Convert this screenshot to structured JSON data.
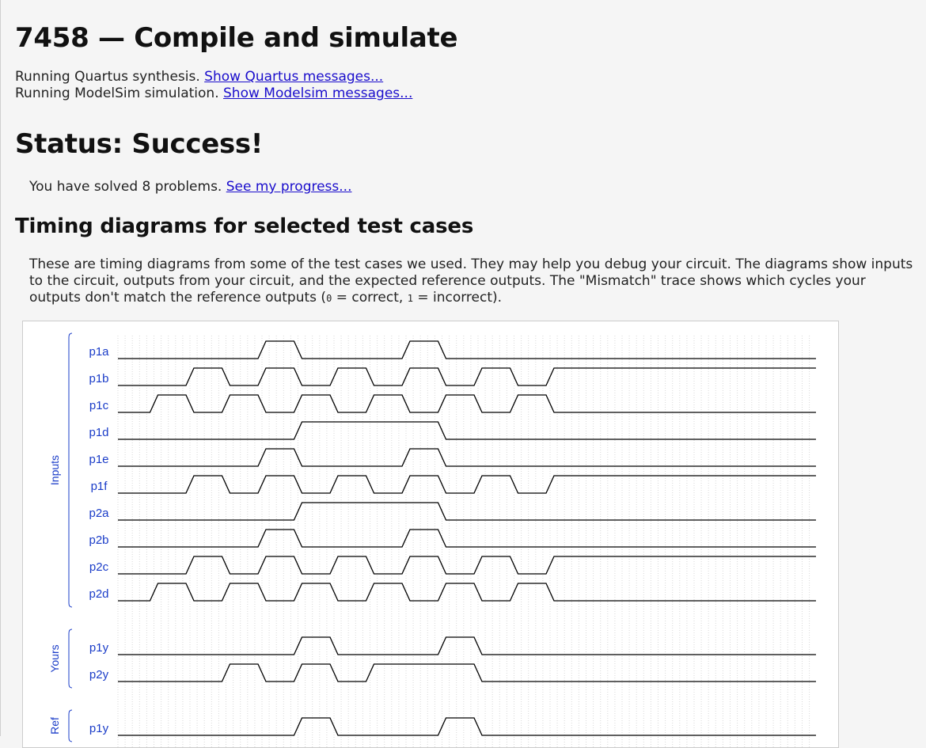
{
  "page": {
    "title": "7458 — Compile and simulate",
    "quartus_text": "Running Quartus synthesis.",
    "quartus_link": "Show Quartus messages...",
    "modelsim_text": "Running ModelSim simulation.",
    "modelsim_link": "Show Modelsim messages...",
    "status": "Status: Success!",
    "solved_text": "You have solved 8 problems.",
    "progress_link": "See my progress...",
    "timing_heading": "Timing diagrams for selected test cases",
    "desc_part1": "These are timing diagrams from some of the test cases we used. They may help you debug your circuit. The diagrams show inputs to the circuit, outputs from your circuit, and the expected reference outputs. The \"Mismatch\" trace shows which cycles your outputs don't match the reference outputs (",
    "desc_code0": "0",
    "desc_mid": " = correct, ",
    "desc_code1": "1",
    "desc_part2": " = incorrect)."
  },
  "timing": {
    "colors": {
      "label": "#1a3cc8",
      "line": "#000000",
      "grid": "#d8d8d8"
    },
    "groups": [
      {
        "name": "Inputs",
        "signals": [
          {
            "name": "p1a",
            "bits": "0000100010000"
          },
          {
            "name": "p1b",
            "bits": "0010101010101"
          },
          {
            "name": "p1c",
            "bits": "0101010101010"
          },
          {
            "name": "p1d",
            "bits": "0000011110000"
          },
          {
            "name": "p1e",
            "bits": "0000100010000"
          },
          {
            "name": "p1f",
            "bits": "0010101010101"
          },
          {
            "name": "p2a",
            "bits": "0000011110000"
          },
          {
            "name": "p2b",
            "bits": "0000100010000"
          },
          {
            "name": "p2c",
            "bits": "0010101010101"
          },
          {
            "name": "p2d",
            "bits": "0101010101010"
          }
        ]
      },
      {
        "name": "Yours",
        "signals": [
          {
            "name": "p1y",
            "bits": "0000010001000"
          },
          {
            "name": "p2y",
            "bits": "0001010111000"
          }
        ]
      },
      {
        "name": "Ref",
        "signals": [
          {
            "name": "p1y",
            "bits": "0000010001000"
          }
        ]
      }
    ]
  }
}
